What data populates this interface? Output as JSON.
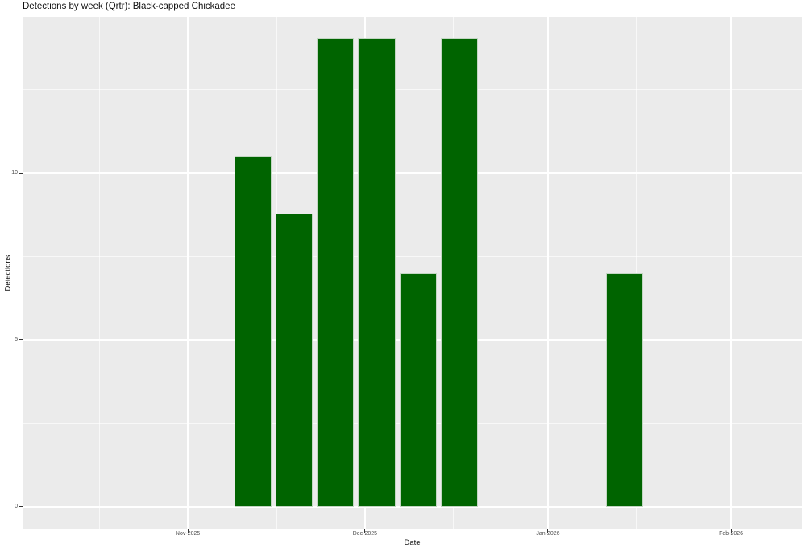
{
  "title": "Detections by week (Qrtr): Black-capped Chickadee",
  "chart_data": {
    "type": "bar",
    "title": "Detections by week (Qrtr): Black-capped Chickadee",
    "xlabel": "Date",
    "ylabel": "Detections",
    "x": [
      "2025-11-12",
      "2025-11-19",
      "2025-11-26",
      "2025-12-03",
      "2025-12-10",
      "2025-12-17",
      "2026-01-14"
    ],
    "values": [
      10.5,
      8.8,
      14.05,
      14.05,
      7,
      14.05,
      7
    ],
    "bar_width_days": 6.3,
    "x_ticks": [
      {
        "label": "Nov-2025",
        "date": "2025-11-01"
      },
      {
        "label": "Dec-2025",
        "date": "2025-12-01"
      },
      {
        "label": "Jan-2026",
        "date": "2026-01-01"
      },
      {
        "label": "Feb-2026",
        "date": "2026-02-01"
      }
    ],
    "x_minor_dates": [
      "2025-10-17",
      "2025-11-16",
      "2025-12-16",
      "2026-01-16"
    ],
    "y_ticks": [
      {
        "label": "0",
        "value": 0
      },
      {
        "label": "5",
        "value": 5
      },
      {
        "label": "10",
        "value": 10
      }
    ],
    "y_minor_values": [
      2.5,
      7.5,
      12.5
    ],
    "x_range": [
      "2025-10-04",
      "2026-02-13"
    ],
    "y_range": [
      -0.68,
      14.69
    ],
    "grid": "on",
    "legend": "none",
    "colors": {
      "bar": "#006400",
      "bar_edge": "#C3D6C3",
      "panel_bg": "#EBEBEB",
      "grid": "#FFFFFF",
      "tick_label": "#4D4D4D",
      "tick_mark": "#333333",
      "title": "#111111",
      "axis_title": "#111111",
      "background": "#FFFFFF"
    }
  }
}
